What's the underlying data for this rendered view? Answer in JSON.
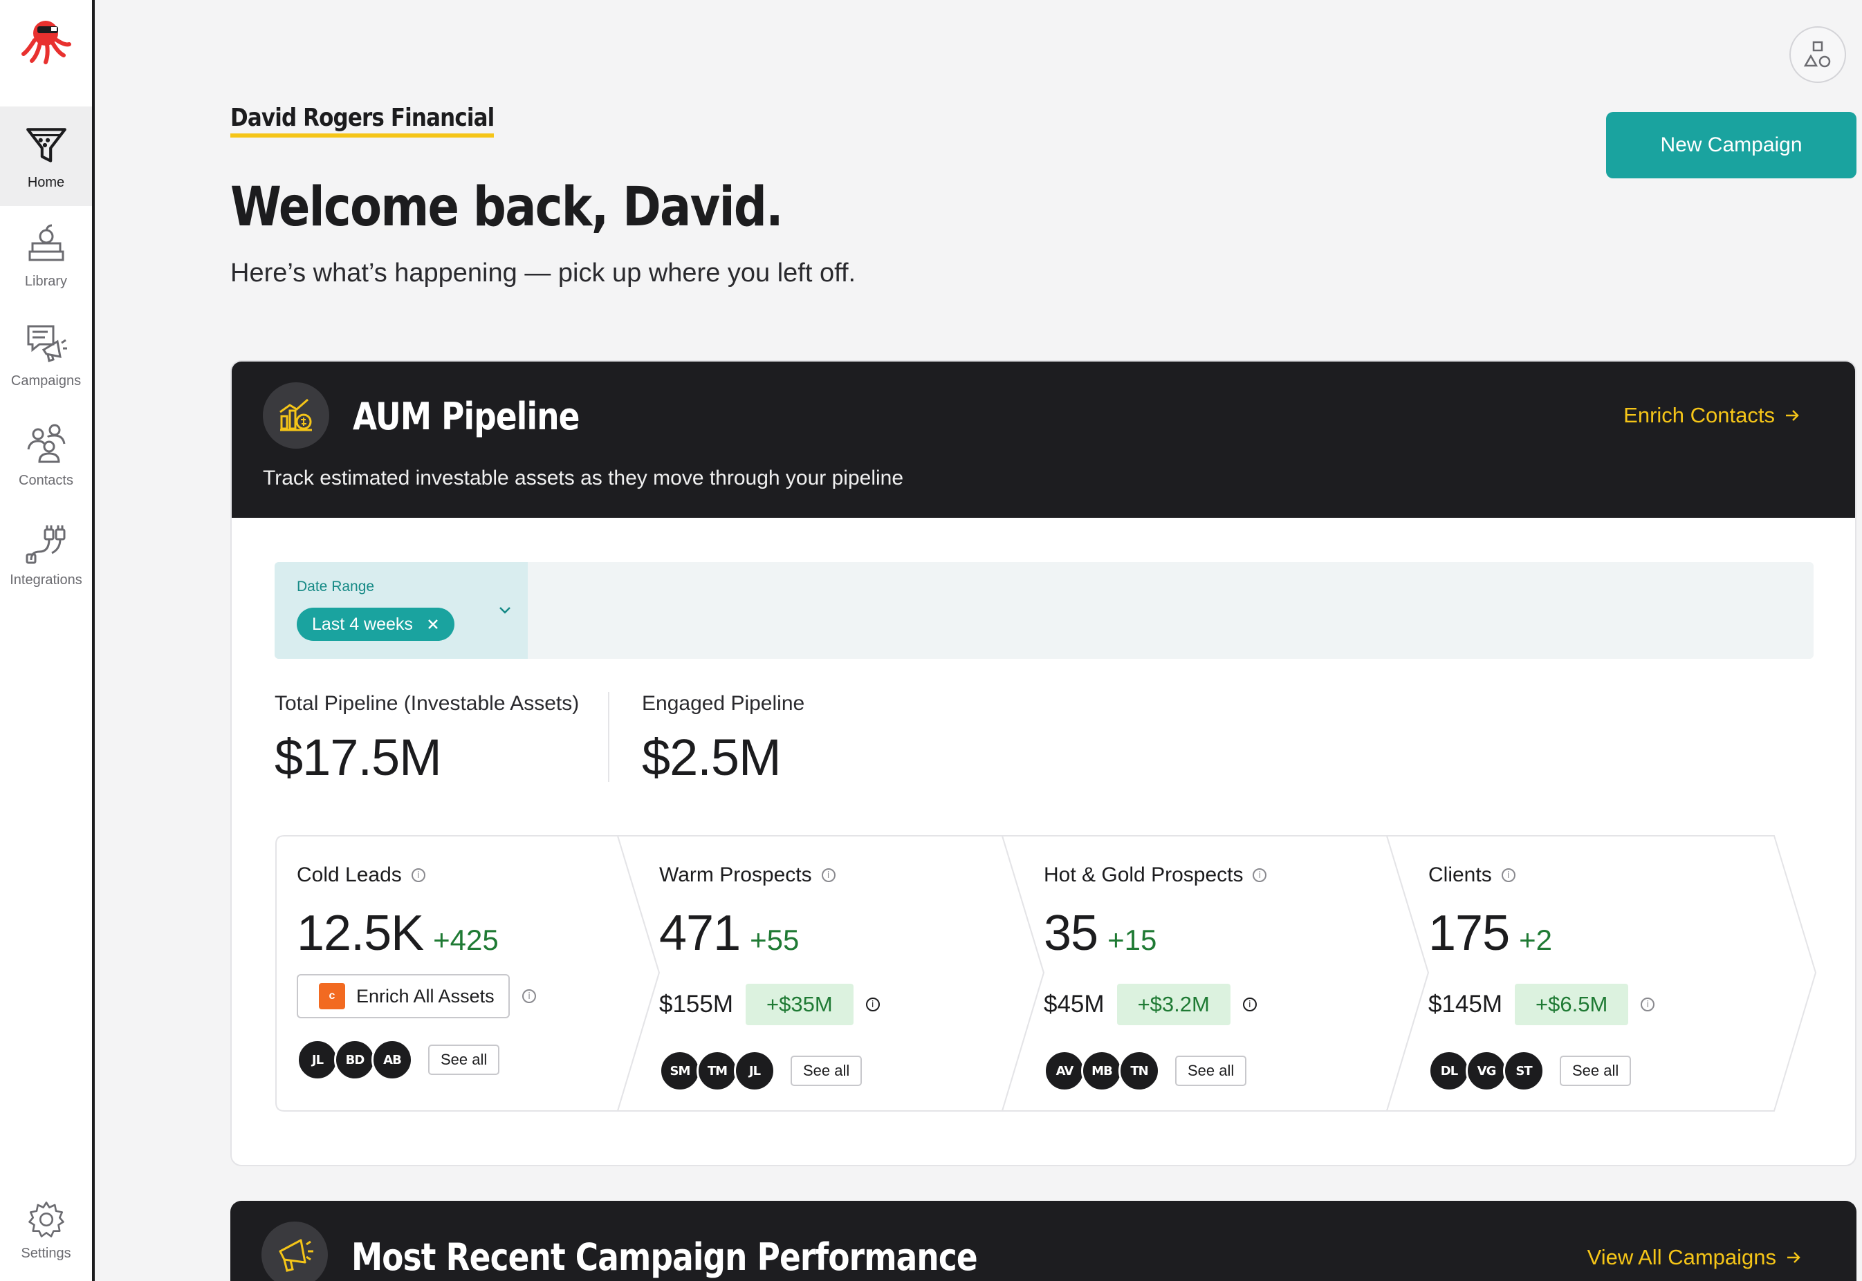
{
  "sidebar": {
    "items": [
      {
        "label": "Home",
        "icon": "funnel-icon",
        "active": true
      },
      {
        "label": "Library",
        "icon": "library-books-icon"
      },
      {
        "label": "Campaigns",
        "icon": "megaphone-chat-icon"
      },
      {
        "label": "Contacts",
        "icon": "people-icon"
      },
      {
        "label": "Integrations",
        "icon": "plug-icon"
      }
    ],
    "settings_label": "Settings"
  },
  "header": {
    "org_name": "David Rogers Financial",
    "welcome": "Welcome back, David.",
    "subtitle": "Here’s what’s happening — pick up where you left off.",
    "new_campaign_label": "New Campaign"
  },
  "aum": {
    "title": "AUM Pipeline",
    "description": "Track estimated investable assets as they move through your pipeline",
    "link_label": "Enrich Contacts",
    "filter": {
      "label": "Date Range",
      "chip": "Last 4 weeks"
    },
    "total_label": "Total Pipeline (Investable Assets)",
    "total_value": "$17.5M",
    "engaged_label": "Engaged Pipeline",
    "engaged_value": "$2.5M",
    "stages": [
      {
        "name": "Cold Leads",
        "count": "12.5K",
        "delta": "+425",
        "enrich_label": "Enrich All Assets",
        "avatars": [
          "JL",
          "BD",
          "AB"
        ],
        "see_all": "See all"
      },
      {
        "name": "Warm Prospects",
        "count": "471",
        "delta": "+55",
        "amount": "$155M",
        "amount_delta": "+$35M",
        "avatars": [
          "SM",
          "TM",
          "JL"
        ],
        "see_all": "See all"
      },
      {
        "name": "Hot & Gold Prospects",
        "count": "35",
        "delta": "+15",
        "amount": "$45M",
        "amount_delta": "+$3.2M",
        "avatars": [
          "AV",
          "MB",
          "TN"
        ],
        "see_all": "See all"
      },
      {
        "name": "Clients",
        "count": "175",
        "delta": "+2",
        "amount": "$145M",
        "amount_delta": "+$6.5M",
        "avatars": [
          "DL",
          "VG",
          "ST"
        ],
        "see_all": "See all"
      }
    ]
  },
  "campaign": {
    "title": "Most Recent Campaign Performance",
    "link_label": "View All Campaigns"
  },
  "colors": {
    "accent": "#1aa39f",
    "highlight": "#f5c518",
    "dark": "#1d1d20",
    "positive": "#1f7a34",
    "positive_bg": "#dcf2df"
  }
}
